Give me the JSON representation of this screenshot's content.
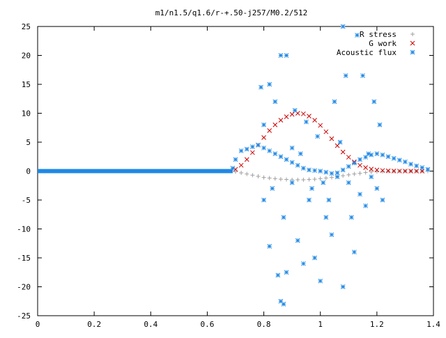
{
  "chart_data": {
    "type": "scatter",
    "title": "m1/n1.5/q1.6/r-+.50-j257/M0.2/512",
    "xlabel": "",
    "ylabel": "",
    "xlim": [
      0,
      1.4
    ],
    "ylim": [
      -25,
      25
    ],
    "x_ticks": [
      0,
      0.2,
      0.4,
      0.6,
      0.8,
      1,
      1.2,
      1.4
    ],
    "x_tick_labels": [
      "0",
      "0.2",
      "0.4",
      "0.6",
      "0.8",
      "1",
      "1.2",
      "1.4"
    ],
    "y_ticks": [
      -25,
      -20,
      -15,
      -10,
      -5,
      0,
      5,
      10,
      15,
      20,
      25
    ],
    "y_tick_labels": [
      "-25",
      "-20",
      "-15",
      "-10",
      "-5",
      "0",
      "5",
      "10",
      "15",
      "20",
      "25"
    ],
    "grid": false,
    "legend_position": "top-right",
    "series": [
      {
        "name": "R stress",
        "marker": "plus",
        "color": "#a0a0a0",
        "x": [
          0.7,
          0.72,
          0.74,
          0.76,
          0.78,
          0.8,
          0.82,
          0.84,
          0.86,
          0.88,
          0.9,
          0.92,
          0.94,
          0.96,
          0.98,
          1.0,
          1.02,
          1.04,
          1.06,
          1.08,
          1.1,
          1.12,
          1.14,
          1.16,
          1.18,
          1.2,
          1.22,
          1.24,
          1.26,
          1.28,
          1.3,
          1.32,
          1.34,
          1.36,
          1.38
        ],
        "y": [
          -0.1,
          -0.3,
          -0.5,
          -0.7,
          -0.9,
          -1.1,
          -1.2,
          -1.3,
          -1.4,
          -1.45,
          -1.5,
          -1.5,
          -1.5,
          -1.45,
          -1.4,
          -1.3,
          -1.2,
          -1.1,
          -0.95,
          -0.8,
          -0.65,
          -0.5,
          -0.38,
          -0.25,
          -0.15,
          -0.08,
          -0.05,
          -0.03,
          -0.02,
          -0.01,
          0,
          0,
          0,
          0,
          0
        ]
      },
      {
        "name": "G work",
        "marker": "cross",
        "color": "#cc0000",
        "x": [
          0.7,
          0.72,
          0.74,
          0.76,
          0.78,
          0.8,
          0.82,
          0.84,
          0.86,
          0.88,
          0.9,
          0.92,
          0.94,
          0.96,
          0.98,
          1.0,
          1.02,
          1.04,
          1.06,
          1.08,
          1.1,
          1.12,
          1.14,
          1.16,
          1.18,
          1.2,
          1.22,
          1.24,
          1.26,
          1.28,
          1.3,
          1.32,
          1.34,
          1.36
        ],
        "y": [
          0.3,
          1.0,
          2.0,
          3.2,
          4.5,
          5.8,
          7.0,
          8.0,
          8.8,
          9.4,
          9.8,
          10.0,
          9.9,
          9.5,
          8.8,
          7.9,
          6.8,
          5.6,
          4.4,
          3.3,
          2.4,
          1.6,
          1.0,
          0.6,
          0.35,
          0.2,
          0.1,
          0.05,
          0.02,
          0.01,
          0,
          0,
          0,
          0
        ]
      },
      {
        "name": "Acoustic flux",
        "marker": "star",
        "color": "#1e88e5",
        "x": [
          0.69,
          0.7,
          0.72,
          0.74,
          0.76,
          0.78,
          0.8,
          0.82,
          0.84,
          0.86,
          0.88,
          0.9,
          0.92,
          0.94,
          0.96,
          0.98,
          1.0,
          1.02,
          1.04,
          1.06,
          1.08,
          1.1,
          1.12,
          1.14,
          1.16,
          1.18,
          1.2,
          1.22,
          1.24,
          1.26,
          1.28,
          1.3,
          1.32,
          1.34,
          1.36,
          1.38,
          0.79,
          0.8,
          0.82,
          0.84,
          0.86,
          0.87,
          0.88,
          0.9,
          0.91,
          0.93,
          0.95,
          0.97,
          0.99,
          1.01,
          1.03,
          1.05,
          1.07,
          1.08,
          1.09,
          1.11,
          1.13,
          1.15,
          1.17,
          1.19,
          1.21,
          0.8,
          0.82,
          0.83,
          0.85,
          0.86,
          0.87,
          0.88,
          0.9,
          0.92,
          0.94,
          0.96,
          0.98,
          1.0,
          1.02,
          1.04,
          1.06,
          1.08,
          1.1,
          1.12,
          1.14,
          1.16,
          1.18,
          1.2,
          1.22
        ],
        "y": [
          0.5,
          2.0,
          3.5,
          3.8,
          4.2,
          4.5,
          4.0,
          3.5,
          3.0,
          2.5,
          2.0,
          1.5,
          1.0,
          0.5,
          0.2,
          0.1,
          0.0,
          -0.2,
          -0.4,
          -0.3,
          0.2,
          0.8,
          1.4,
          2.0,
          2.4,
          2.8,
          3.0,
          2.8,
          2.5,
          2.2,
          1.9,
          1.6,
          1.2,
          0.9,
          0.6,
          0.3,
          14.5,
          8.0,
          15.0,
          12.0,
          20.0,
          -23.0,
          20.0,
          4.0,
          10.5,
          3.0,
          8.5,
          -3.0,
          6.0,
          -2.0,
          -5.0,
          12.0,
          5.0,
          25.0,
          16.5,
          -8.0,
          23.5,
          16.5,
          3.0,
          12.0,
          8.0,
          -5.0,
          -13.0,
          -3.0,
          -18.0,
          -22.5,
          -8.0,
          -17.5,
          -2.0,
          -12.0,
          -16.0,
          -5.0,
          -15.0,
          -19.0,
          -8.0,
          -11.0,
          -1.0,
          -20.0,
          -2.0,
          -14.0,
          -4.0,
          -6.0,
          -1.0,
          -3.0,
          -5.0
        ]
      }
    ]
  }
}
